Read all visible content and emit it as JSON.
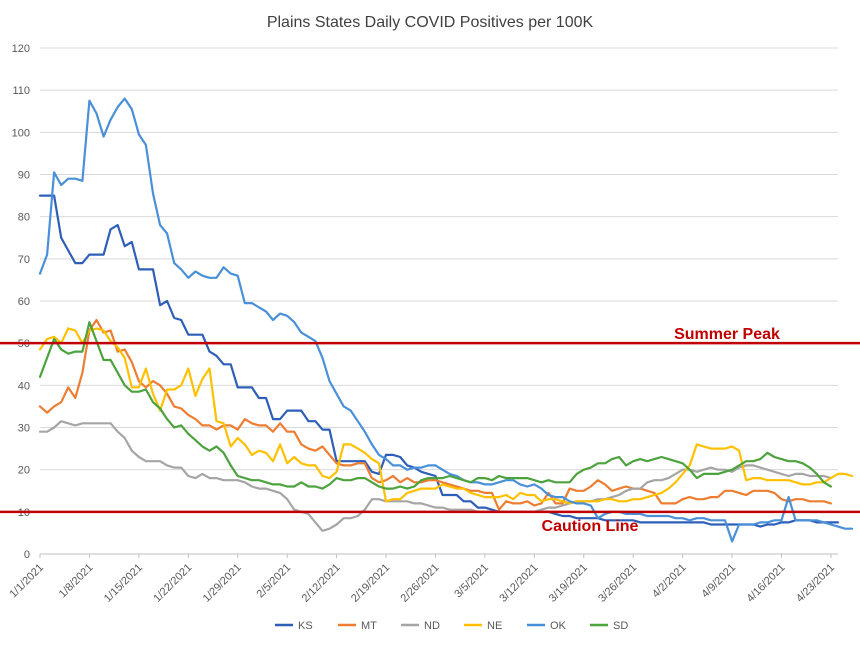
{
  "chart_data": {
    "type": "line",
    "title": "Plains States Daily COVID Positives per 100K",
    "xlabel": "",
    "ylabel": "",
    "ylim": [
      0,
      120
    ],
    "yticks": [
      0,
      10,
      20,
      30,
      40,
      50,
      60,
      70,
      80,
      90,
      100,
      110,
      120
    ],
    "grid": "horizontal",
    "legend_position": "bottom",
    "x_start": "1/1/2021",
    "x_end": "4/24/2021",
    "xtick_labels": [
      "1/1/2021",
      "1/8/2021",
      "1/15/2021",
      "1/22/2021",
      "1/29/2021",
      "2/5/2021",
      "2/12/2021",
      "2/19/2021",
      "2/26/2021",
      "3/5/2021",
      "3/12/2021",
      "3/19/2021",
      "3/26/2021",
      "4/2/2021",
      "4/9/2021",
      "4/16/2021",
      "4/23/2021"
    ],
    "reference_lines": [
      {
        "label": "Summer Peak",
        "value": 50,
        "color": "#c00000",
        "label_position": "above"
      },
      {
        "label": "Caution Line",
        "value": 10,
        "color": "#c00000",
        "label_position": "below"
      }
    ],
    "series": [
      {
        "name": "KS",
        "color": "#2e5fb8",
        "values": [
          85,
          85,
          85,
          75,
          72,
          69,
          69,
          71,
          71,
          71,
          77,
          78,
          73,
          74,
          67.5,
          67.5,
          67.5,
          59,
          60,
          56,
          55.5,
          52,
          52,
          52,
          48,
          47,
          45,
          45,
          39.5,
          39.5,
          39.5,
          37,
          37,
          32,
          32,
          34,
          34,
          34,
          31.5,
          31.5,
          29.5,
          29.5,
          22,
          22,
          22,
          22,
          22,
          19.5,
          19,
          23.5,
          23.5,
          23,
          21,
          20.5,
          19.5,
          19,
          18.5,
          14,
          14,
          14,
          12.5,
          12.5,
          11,
          11,
          10.5,
          10,
          10,
          10,
          10,
          10,
          10,
          10,
          10,
          9.5,
          9,
          9,
          8.5,
          8.5,
          8.5,
          8.5,
          8,
          8,
          8,
          8,
          8,
          7.5,
          7.5,
          7.5,
          7.5,
          7.5,
          7.5,
          7.5,
          7.5,
          7.5,
          7.5,
          7,
          7,
          7,
          7,
          7,
          7,
          7,
          6.5,
          7,
          7,
          7.5,
          7.5,
          8,
          8,
          8,
          7.5,
          7.5,
          7.5,
          7.5
        ]
      },
      {
        "name": "MT",
        "color": "#ed7d31",
        "values": [
          35,
          33.5,
          35,
          36,
          39.5,
          37,
          43,
          53,
          55.5,
          52.5,
          53,
          48,
          48.5,
          45.5,
          41,
          39.5,
          41,
          40,
          38,
          35,
          34.5,
          33,
          32,
          30.5,
          30.5,
          29.5,
          30.5,
          30.5,
          29.5,
          32,
          31,
          30.5,
          30.5,
          29,
          31,
          29,
          29,
          26,
          25,
          24.5,
          25.5,
          23.5,
          21.5,
          21,
          21,
          21.5,
          21.5,
          18,
          17,
          17.5,
          18.5,
          17,
          18,
          17,
          17,
          17.5,
          17.5,
          17,
          16.5,
          16,
          15.5,
          15,
          15,
          14.5,
          14.5,
          10.5,
          12.5,
          12,
          12,
          12.5,
          11.5,
          12,
          14.5,
          12,
          12,
          15.5,
          15,
          15,
          16,
          17.5,
          16.5,
          15,
          15.5,
          16,
          15.5,
          15.5,
          15,
          14.5,
          12,
          12,
          12,
          13,
          13.5,
          13,
          13,
          13.5,
          13.5,
          15,
          15,
          14.5,
          14,
          15,
          15,
          15,
          14.5,
          13,
          12.5,
          13,
          13,
          12.5,
          12.5,
          12.5,
          12
        ]
      },
      {
        "name": "ND",
        "color": "#a5a5a5",
        "values": [
          29,
          29,
          30,
          31.5,
          31,
          30.5,
          31,
          31,
          31,
          31,
          31,
          29,
          27.5,
          24.5,
          23,
          22,
          22,
          22,
          21,
          20.5,
          20.5,
          18.5,
          18,
          19,
          18,
          18,
          17.5,
          17.5,
          17.5,
          17,
          16,
          15.5,
          15.5,
          15,
          14.5,
          13,
          10.5,
          10,
          9.5,
          7.5,
          5.5,
          6,
          7,
          8.5,
          8.5,
          9,
          10.5,
          13,
          13,
          12.5,
          12.5,
          12.5,
          12.5,
          12,
          12,
          11.5,
          11,
          11,
          10.5,
          10.5,
          10.5,
          10.5,
          10,
          10,
          10,
          10,
          10,
          10,
          10,
          10,
          10,
          10.5,
          11,
          11,
          11.5,
          12,
          12.5,
          12.5,
          12.5,
          13,
          13,
          13.5,
          14,
          15,
          15.5,
          15.5,
          17,
          17.5,
          17.5,
          18,
          19,
          20,
          20,
          19.5,
          20,
          20.5,
          20,
          20,
          19.5,
          20.5,
          21,
          21,
          20.5,
          20,
          19.5,
          19,
          18.5,
          19,
          19,
          18.5,
          18.5,
          18.5,
          18
        ]
      },
      {
        "name": "NE",
        "color": "#ffc000",
        "values": [
          48.5,
          51,
          51.5,
          50,
          53.5,
          53,
          50,
          53,
          53.5,
          53,
          50.5,
          49,
          46.5,
          39.5,
          39.5,
          44,
          38,
          34,
          39,
          39,
          40,
          44,
          37.5,
          41.5,
          44,
          31.5,
          31,
          25.5,
          27.5,
          26,
          23.5,
          24.5,
          24,
          22,
          26,
          21.5,
          23,
          21.5,
          21,
          21,
          18.5,
          18,
          19.5,
          26,
          26,
          25,
          24,
          22.5,
          21.5,
          12.5,
          13,
          13,
          14.5,
          15,
          15.5,
          15.5,
          15.5,
          16.5,
          16,
          15.5,
          15.5,
          14.5,
          14,
          13.5,
          13.5,
          13.5,
          14,
          13,
          14.5,
          14,
          14,
          12.5,
          13,
          13,
          12.5,
          12,
          12.5,
          12.5,
          12.5,
          12.5,
          13,
          13,
          12.5,
          12.5,
          13,
          13,
          13.5,
          14,
          14.5,
          15.5,
          17,
          19,
          21,
          26,
          25.5,
          25,
          25,
          25,
          25.5,
          24.5,
          17.5,
          18,
          18,
          17.5,
          17.5,
          17.5,
          17.5,
          17,
          16.5,
          16.5,
          17,
          17,
          18,
          19,
          19,
          18.5
        ]
      },
      {
        "name": "OK",
        "color": "#4a90d9",
        "values": [
          66.5,
          71,
          90.5,
          87.5,
          89,
          89,
          88.5,
          107.5,
          104.5,
          99,
          103,
          106,
          108,
          105.5,
          99.5,
          97,
          85.5,
          78,
          76,
          69,
          67.5,
          65.5,
          67,
          66,
          65.5,
          65.5,
          68,
          66.5,
          66,
          59.5,
          59.5,
          58.5,
          57.5,
          55.5,
          57,
          56.5,
          55,
          52.5,
          51.5,
          50.5,
          46.5,
          41,
          38,
          35,
          34,
          31.5,
          29,
          26,
          23.5,
          22.5,
          21,
          21,
          20,
          20.5,
          20.5,
          21,
          21,
          20,
          19,
          18.5,
          17.5,
          17,
          17,
          16.5,
          16.5,
          17,
          17.5,
          17.5,
          16.5,
          16,
          16.5,
          15.5,
          14,
          13.5,
          13.5,
          12.5,
          12,
          12,
          11.5,
          8.5,
          9.5,
          10,
          10,
          9.5,
          9.5,
          9.5,
          9,
          9,
          9,
          9,
          8.5,
          8.5,
          8,
          8.5,
          8.5,
          8,
          8,
          8,
          3,
          7,
          7,
          7,
          7.5,
          7.5,
          8,
          8,
          13.5,
          8,
          8,
          8,
          8,
          7.5,
          7,
          6.5,
          6,
          6
        ]
      },
      {
        "name": "SD",
        "color": "#4ca33d",
        "values": [
          42,
          46.5,
          51,
          48.5,
          47.5,
          48,
          48,
          55,
          50.5,
          46,
          46,
          43,
          40,
          38.5,
          38.5,
          39,
          36,
          34.5,
          32,
          30,
          30.5,
          28.5,
          27,
          25.5,
          24.5,
          25.5,
          24,
          21,
          18.5,
          18,
          17.5,
          17.5,
          17,
          16.5,
          16.5,
          16,
          16,
          17,
          16,
          16,
          15.5,
          16.5,
          18,
          17.5,
          17.5,
          18,
          18,
          17,
          16,
          15.5,
          15.5,
          16,
          15.5,
          16,
          17.5,
          18,
          18,
          18,
          18.5,
          18,
          17.5,
          17,
          18,
          18,
          17.5,
          18.5,
          18,
          18,
          18,
          18,
          17.5,
          17,
          17.5,
          17,
          17,
          17,
          19,
          20,
          20.5,
          21.5,
          21.5,
          22.5,
          23,
          21,
          22,
          22.5,
          22,
          22.5,
          23,
          22.5,
          22,
          21.5,
          20,
          18,
          19,
          19,
          19,
          19.5,
          20,
          21,
          22,
          22,
          22.5,
          24,
          23,
          22.5,
          22,
          22,
          21.5,
          20.5,
          19,
          17,
          16
        ]
      }
    ]
  }
}
